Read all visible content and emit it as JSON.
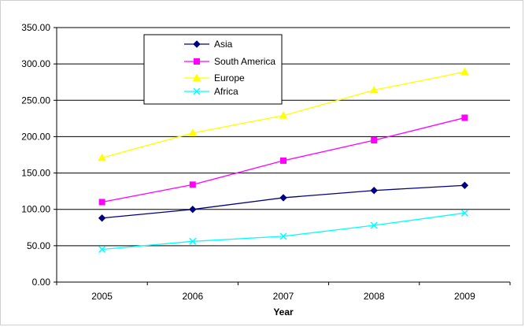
{
  "chart_data": {
    "type": "line",
    "title": "",
    "xlabel": "Year",
    "ylabel": "",
    "categories": [
      "2005",
      "2006",
      "2007",
      "2008",
      "2009"
    ],
    "ylim": [
      0,
      350
    ],
    "yticks": [
      "0.00",
      "50.00",
      "100.00",
      "150.00",
      "200.00",
      "250.00",
      "300.00",
      "350.00"
    ],
    "grid": "horizontal",
    "legend_position": "top-left-inside",
    "series": [
      {
        "name": "Asia",
        "values": [
          88,
          100,
          116,
          126,
          133
        ],
        "color": "#000080",
        "marker": "diamond"
      },
      {
        "name": "South America",
        "values": [
          110,
          134,
          167,
          195,
          226
        ],
        "color": "#ff00ff",
        "marker": "square"
      },
      {
        "name": "Europe",
        "values": [
          171,
          205,
          229,
          264,
          289
        ],
        "color": "#ffff00",
        "marker": "triangle"
      },
      {
        "name": "Africa",
        "values": [
          45,
          56,
          63,
          78,
          95
        ],
        "color": "#00ffff",
        "marker": "x"
      }
    ]
  }
}
